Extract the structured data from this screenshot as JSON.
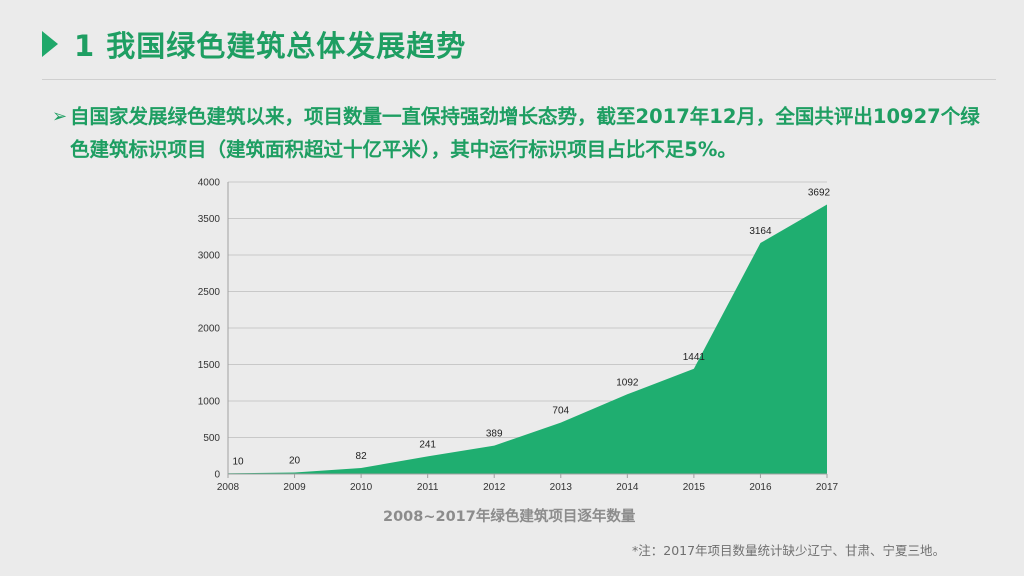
{
  "slide": {
    "title": "1 我国绿色建筑总体发展趋势",
    "bullet_icon": "arrow-bullet-icon",
    "bullet_text": "自国家发展绿色建筑以来，项目数量一直保持强劲增长态势，截至2017年12月，全国共评出10927个绿色建筑标识项目（建筑面积超过十亿平米），其中运行标识项目占比不足5%。",
    "footnote": "*注：2017年项目数量统计缺少辽宁、甘肃、宁夏三地。",
    "accent_color": "#1fa86a"
  },
  "chart_data": {
    "type": "area",
    "title": "2008~2017年绿色建筑项目逐年数量",
    "x": [
      2008,
      2009,
      2010,
      2011,
      2012,
      2013,
      2014,
      2015,
      2016,
      2017
    ],
    "values": [
      10,
      20,
      82,
      241,
      389,
      704,
      1092,
      1441,
      3164,
      3692
    ],
    "ylim": [
      0,
      4000
    ],
    "yticks": [
      0,
      500,
      1000,
      1500,
      2000,
      2500,
      3000,
      3500,
      4000
    ],
    "grid": true,
    "legend": "none",
    "fill_color": "#1fae70"
  }
}
